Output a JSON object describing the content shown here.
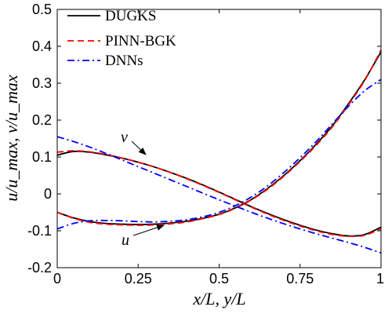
{
  "chart_data": {
    "type": "line",
    "xlabel": "x/L, y/L",
    "ylabel": "u/u_max, v/u_max",
    "xlim": [
      0,
      1
    ],
    "ylim": [
      -0.2,
      0.5
    ],
    "xticks": [
      0,
      0.25,
      0.5,
      0.75,
      1
    ],
    "xtick_labels": [
      "0",
      "0.25",
      "0.5",
      "0.75",
      "1"
    ],
    "yticks": [
      -0.2,
      -0.1,
      0,
      0.1,
      0.2,
      0.3,
      0.4,
      0.5
    ],
    "ytick_labels": [
      "-0.2",
      "-0.1",
      "0",
      "0.1",
      "0.2",
      "0.3",
      "0.4",
      "0.5"
    ],
    "legend_position": "top-left",
    "grid": false,
    "x": [
      0,
      0.05,
      0.1,
      0.15,
      0.2,
      0.25,
      0.3,
      0.35,
      0.4,
      0.45,
      0.5,
      0.55,
      0.6,
      0.65,
      0.7,
      0.75,
      0.8,
      0.85,
      0.9,
      0.95,
      1
    ],
    "series": [
      {
        "name": "DUGKS",
        "curve": "u",
        "color": "#000000",
        "dash": "solid",
        "values": [
          -0.05,
          -0.065,
          -0.075,
          -0.08,
          -0.082,
          -0.083,
          -0.082,
          -0.079,
          -0.074,
          -0.066,
          -0.055,
          -0.038,
          -0.015,
          0.015,
          0.05,
          0.09,
          0.135,
          0.185,
          0.245,
          0.31,
          0.385
        ]
      },
      {
        "name": "PINN-BGK",
        "curve": "u",
        "color": "#ff0000",
        "dash": "dashed",
        "values": [
          -0.05,
          -0.066,
          -0.077,
          -0.082,
          -0.084,
          -0.085,
          -0.084,
          -0.081,
          -0.076,
          -0.067,
          -0.056,
          -0.039,
          -0.016,
          0.013,
          0.048,
          0.088,
          0.132,
          0.182,
          0.242,
          0.308,
          0.39
        ]
      },
      {
        "name": "DNNs",
        "curve": "u",
        "color": "#0000ff",
        "dash": "dashdot",
        "values": [
          -0.095,
          -0.08,
          -0.073,
          -0.072,
          -0.073,
          -0.075,
          -0.076,
          -0.074,
          -0.07,
          -0.062,
          -0.05,
          -0.032,
          -0.008,
          0.022,
          0.058,
          0.098,
          0.142,
          0.19,
          0.238,
          0.28,
          0.31
        ]
      },
      {
        "name": "DUGKS",
        "curve": "v",
        "color": "#000000",
        "dash": "solid",
        "values": [
          0.105,
          0.115,
          0.113,
          0.106,
          0.097,
          0.086,
          0.073,
          0.058,
          0.042,
          0.024,
          0.005,
          -0.015,
          -0.035,
          -0.053,
          -0.07,
          -0.085,
          -0.098,
          -0.108,
          -0.114,
          -0.11,
          -0.09
        ]
      },
      {
        "name": "PINN-BGK",
        "curve": "v",
        "color": "#ff0000",
        "dash": "dashed",
        "values": [
          0.113,
          0.117,
          0.114,
          0.107,
          0.097,
          0.086,
          0.073,
          0.058,
          0.041,
          0.023,
          0.004,
          -0.016,
          -0.036,
          -0.055,
          -0.072,
          -0.087,
          -0.1,
          -0.11,
          -0.115,
          -0.112,
          -0.094
        ]
      },
      {
        "name": "DNNs",
        "curve": "v",
        "color": "#0000ff",
        "dash": "dashdot",
        "values": [
          0.155,
          0.142,
          0.127,
          0.11,
          0.092,
          0.074,
          0.056,
          0.038,
          0.02,
          0.002,
          -0.016,
          -0.033,
          -0.05,
          -0.066,
          -0.081,
          -0.095,
          -0.108,
          -0.12,
          -0.132,
          -0.145,
          -0.16
        ]
      }
    ],
    "legend": [
      "DUGKS",
      "PINN-BGK",
      "DNNs"
    ],
    "annotations": [
      {
        "text": "v",
        "points_to_curve": "v",
        "at_x": 0.26
      },
      {
        "text": "u",
        "points_to_curve": "u",
        "at_x": 0.33
      }
    ]
  }
}
